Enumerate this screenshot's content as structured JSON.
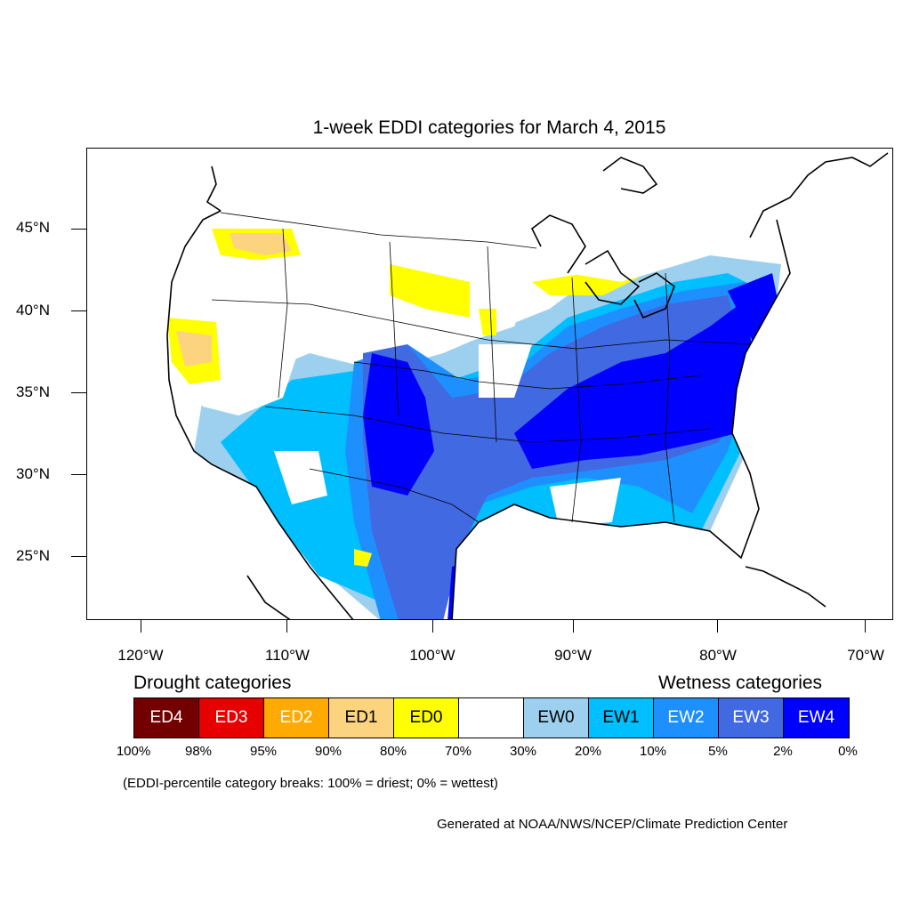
{
  "title": "1-week EDDI categories for March 4, 2015",
  "lat_labels": [
    "45°N",
    "40°N",
    "35°N",
    "30°N",
    "25°N"
  ],
  "lon_labels": [
    "120°W",
    "110°W",
    "100°W",
    "90°W",
    "80°W",
    "70°W"
  ],
  "legend": {
    "drought_heading": "Drought categories",
    "wetness_heading": "Wetness categories",
    "categories": [
      {
        "label": "ED4",
        "color": "#730000",
        "text_color": "#ffffff"
      },
      {
        "label": "ED3",
        "color": "#e60000",
        "text_color": "#ffffff"
      },
      {
        "label": "ED2",
        "color": "#ffaa00",
        "text_color": "#ffffff"
      },
      {
        "label": "ED1",
        "color": "#fcd37f",
        "text_color": "#000000"
      },
      {
        "label": "ED0",
        "color": "#ffff00",
        "text_color": "#000000"
      },
      {
        "label": "",
        "color": "#ffffff",
        "text_color": "#000000"
      },
      {
        "label": "EW0",
        "color": "#9dd0ef",
        "text_color": "#000000"
      },
      {
        "label": "EW1",
        "color": "#00bfff",
        "text_color": "#000000"
      },
      {
        "label": "EW2",
        "color": "#1e8fff",
        "text_color": "#ffffff"
      },
      {
        "label": "EW3",
        "color": "#4169e1",
        "text_color": "#ffffff"
      },
      {
        "label": "EW4",
        "color": "#0000ff",
        "text_color": "#ffffff"
      }
    ],
    "breaks": [
      "100%",
      "98%",
      "95%",
      "90%",
      "80%",
      "70%",
      "30%",
      "20%",
      "10%",
      "5%",
      "2%",
      "0%"
    ]
  },
  "note": "(EDDI-percentile category breaks: 100% = driest; 0% = wettest)",
  "credit": "Generated at NOAA/NWS/NCEP/Climate Prediction Center"
}
